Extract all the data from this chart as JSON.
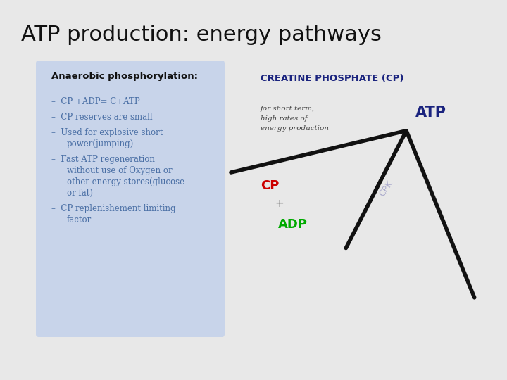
{
  "title": "ATP production: energy pathways",
  "title_fontsize": 22,
  "title_color": "#111111",
  "bg_color": "#e8e8e8",
  "box_bg_color": "#c8d4ea",
  "box_header": "Anaerobic phosphorylation:",
  "box_header_color": "#111111",
  "bullet_color": "#4a6fa5",
  "bullets": [
    "CP +ADP= C+ATP",
    "CP reserves are small",
    "Used for explosive short\npower(jumping)",
    "Fast ATP regeneration\nwithout use of Oxygen or\nother energy stores(glucose\nor fat)",
    "CP replenishement limiting\nfactor"
  ],
  "diagram_title": "CREATINE PHOSPHATE (CP)",
  "diagram_title_color": "#1a237e",
  "diagram_subtitle_lines": [
    "for short term,",
    "high rates of",
    "energy production"
  ],
  "diagram_subtitle_color": "#444444",
  "atp_label": "ATP",
  "atp_color": "#1a237e",
  "cp_label": "CP",
  "cp_color": "#cc0000",
  "adp_label": "ADP",
  "adp_color": "#00aa00",
  "plus_label": "+",
  "cpk_label": "CPK",
  "cpk_color": "#aaaacc",
  "arrow_color": "#111111"
}
